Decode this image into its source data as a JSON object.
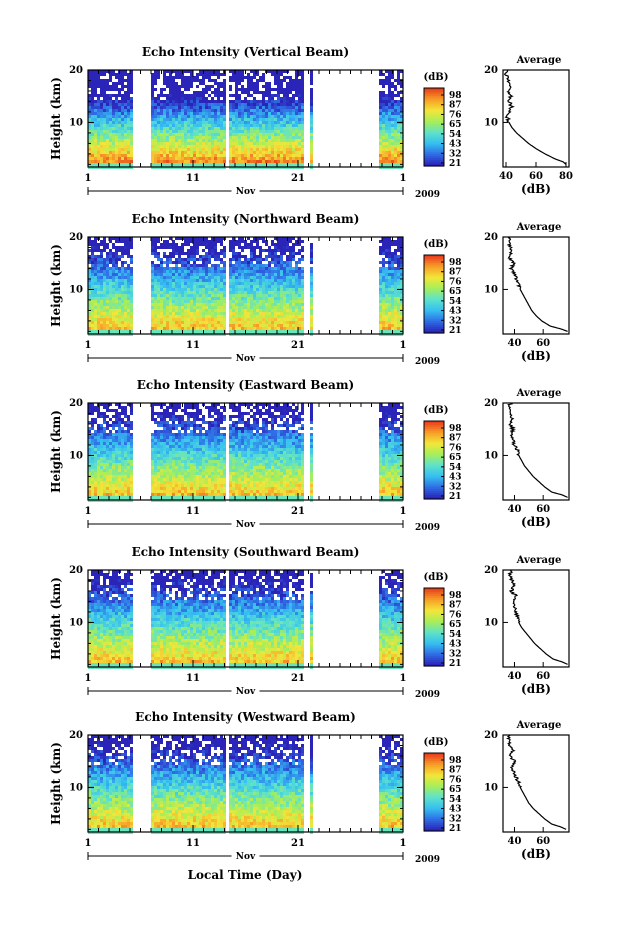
{
  "colorbar": {
    "unit_label": "(dB)",
    "tick_labels": [
      "98",
      "87",
      "76",
      "65",
      "54",
      "43",
      "32",
      "21"
    ],
    "colors": [
      "#2b24b8",
      "#2f6fe6",
      "#36c0f0",
      "#5fe2c9",
      "#a6ee5a",
      "#f2e63a",
      "#f7a028",
      "#e8401c"
    ]
  },
  "month_label": "Nov",
  "year_label": "2009",
  "x_tick_labels": [
    "1",
    "11",
    "21",
    "1"
  ],
  "x_axis_label": "Local Time (Day)",
  "avg_title": "Average",
  "avg_xlabel": "(dB)",
  "chart_data": [
    {
      "type": "heatmap",
      "title": "Echo Intensity (Vertical Beam)",
      "ylabel": "Height (km)",
      "y_ticks": [
        "20",
        "10"
      ],
      "ylim": [
        1.5,
        20
      ],
      "xlim": [
        1,
        31
      ],
      "data_intervals_days": [
        [
          1,
          5.3
        ],
        [
          7.0,
          14.0
        ],
        [
          14.4,
          21.7
        ],
        [
          22.1,
          22.4
        ],
        [
          28.6,
          31
        ]
      ],
      "color_range_db": [
        21,
        98
      ],
      "profile": {
        "xlim": [
          38,
          82
        ],
        "x_ticks": [
          "40",
          "60",
          "80"
        ],
        "height_km": [
          2,
          2.5,
          3,
          4,
          5,
          6,
          7,
          8,
          9,
          10,
          11,
          12,
          13,
          14,
          15,
          16,
          17,
          18,
          19,
          20
        ],
        "db": [
          80,
          78,
          73,
          66,
          60,
          55,
          51,
          47,
          44,
          42,
          41,
          42,
          44,
          42,
          43,
          41,
          43,
          42,
          40,
          41
        ]
      }
    },
    {
      "type": "heatmap",
      "title": "Echo Intensity (Northward Beam)",
      "ylabel": "Height (km)",
      "y_ticks": [
        "20",
        "10"
      ],
      "ylim": [
        1.5,
        20
      ],
      "xlim": [
        1,
        31
      ],
      "data_intervals_days": [
        [
          1,
          5.3
        ],
        [
          7.0,
          14.0
        ],
        [
          14.4,
          21.7
        ],
        [
          22.1,
          22.4
        ],
        [
          28.6,
          31
        ]
      ],
      "color_range_db": [
        21,
        98
      ],
      "profile": {
        "xlim": [
          32,
          78
        ],
        "x_ticks": [
          "40",
          "60"
        ],
        "height_km": [
          2,
          2.5,
          3,
          4,
          5,
          6,
          7,
          8,
          9,
          10,
          11,
          12,
          13,
          14,
          15,
          16,
          17,
          18,
          19,
          20
        ],
        "db": [
          77,
          72,
          65,
          59,
          55,
          52,
          50,
          48,
          46,
          44,
          43,
          41,
          40,
          38,
          39,
          37,
          38,
          37,
          36,
          37
        ]
      }
    },
    {
      "type": "heatmap",
      "title": "Echo Intensity (Eastward Beam)",
      "ylabel": "Height (km)",
      "y_ticks": [
        "20",
        "10"
      ],
      "ylim": [
        1.5,
        20
      ],
      "xlim": [
        1,
        31
      ],
      "data_intervals_days": [
        [
          1,
          5.3
        ],
        [
          7.0,
          14.0
        ],
        [
          14.4,
          21.7
        ],
        [
          22.1,
          22.4
        ],
        [
          28.6,
          31
        ]
      ],
      "color_range_db": [
        21,
        98
      ],
      "profile": {
        "xlim": [
          32,
          78
        ],
        "x_ticks": [
          "40",
          "60"
        ],
        "height_km": [
          2,
          2.5,
          3,
          4,
          5,
          6,
          7,
          8,
          9,
          10,
          11,
          12,
          13,
          14,
          15,
          16,
          17,
          18,
          19,
          20
        ],
        "db": [
          77,
          73,
          66,
          61,
          57,
          53,
          50,
          47,
          45,
          43,
          42,
          40,
          39,
          38,
          39,
          37,
          38,
          37,
          36,
          37
        ]
      }
    },
    {
      "type": "heatmap",
      "title": "Echo Intensity (Southward Beam)",
      "ylabel": "Height (km)",
      "y_ticks": [
        "20",
        "10"
      ],
      "ylim": [
        1.5,
        20
      ],
      "xlim": [
        1,
        31
      ],
      "data_intervals_days": [
        [
          1,
          5.3
        ],
        [
          7.0,
          14.0
        ],
        [
          14.4,
          21.7
        ],
        [
          22.1,
          22.4
        ],
        [
          28.6,
          31
        ]
      ],
      "color_range_db": [
        21,
        98
      ],
      "profile": {
        "xlim": [
          32,
          78
        ],
        "x_ticks": [
          "40",
          "60"
        ],
        "height_km": [
          2,
          2.5,
          3,
          4,
          5,
          6,
          7,
          8,
          9,
          10,
          11,
          12,
          13,
          14,
          15,
          16,
          17,
          18,
          19,
          20
        ],
        "db": [
          77,
          73,
          67,
          62,
          58,
          54,
          51,
          48,
          45,
          43,
          42,
          41,
          40,
          39,
          41,
          38,
          40,
          38,
          37,
          38
        ]
      }
    },
    {
      "type": "heatmap",
      "title": "Echo Intensity (Westward Beam)",
      "ylabel": "Height (km)",
      "y_ticks": [
        "20",
        "10"
      ],
      "ylim": [
        1.5,
        20
      ],
      "xlim": [
        1,
        31
      ],
      "data_intervals_days": [
        [
          1,
          5.3
        ],
        [
          7.0,
          14.0
        ],
        [
          14.4,
          21.7
        ],
        [
          22.1,
          22.4
        ],
        [
          28.6,
          31
        ]
      ],
      "color_range_db": [
        21,
        98
      ],
      "profile": {
        "xlim": [
          32,
          78
        ],
        "x_ticks": [
          "40",
          "60"
        ],
        "height_km": [
          2,
          2.5,
          3,
          4,
          5,
          6,
          7,
          8,
          9,
          10,
          11,
          12,
          13,
          14,
          15,
          16,
          17,
          18,
          19,
          20
        ],
        "db": [
          76,
          72,
          66,
          61,
          57,
          53,
          50,
          48,
          46,
          44,
          43,
          41,
          39,
          38,
          40,
          37,
          39,
          37,
          36,
          37
        ]
      }
    }
  ]
}
